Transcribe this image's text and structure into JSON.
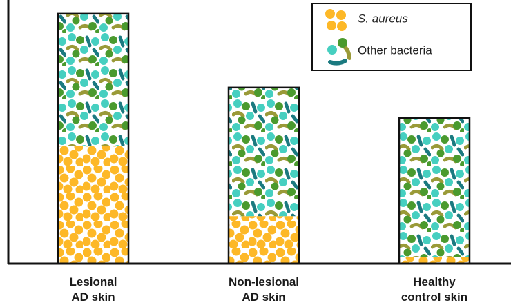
{
  "chart_data": {
    "type": "stacked_bar",
    "categories": [
      "Lesional\nAD skin",
      "Non-lesional\nAD skin",
      "Healthy\ncontrol skin"
    ],
    "series": [
      {
        "name": "S. aureus",
        "color": "#fdb827",
        "values": [
          44.5,
          18,
          2.6
        ]
      },
      {
        "name": "Other bacteria",
        "color": "#46cfc0",
        "values": [
          50.3,
          48.8,
          52.6
        ]
      }
    ],
    "ylim": [
      0,
      100
    ],
    "legend": "upper right"
  }
}
